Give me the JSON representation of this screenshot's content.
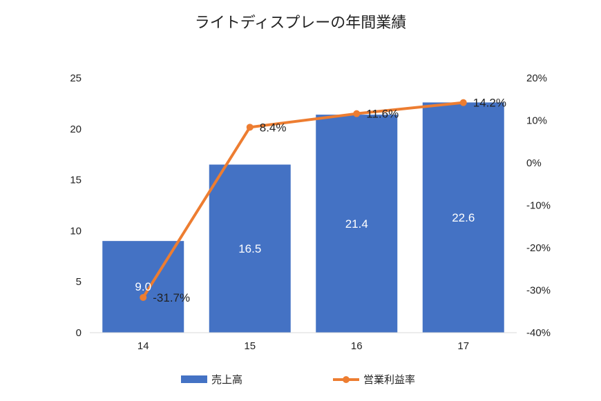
{
  "chart_data": {
    "type": "bar",
    "title": "ライトディスプレーの年間業績",
    "categories": [
      "14",
      "15",
      "16",
      "17"
    ],
    "series": [
      {
        "name": "売上高",
        "type": "bar",
        "axis": "left",
        "color": "#4472C4",
        "values": [
          9.0,
          16.5,
          21.4,
          22.6
        ],
        "labels": [
          "9.0",
          "16.5",
          "21.4",
          "22.6"
        ]
      },
      {
        "name": "営業利益率",
        "type": "line",
        "axis": "right",
        "color": "#ED7D31",
        "values": [
          -31.7,
          8.4,
          11.6,
          14.2
        ],
        "labels": [
          "-31.7%",
          "8.4%",
          "11.6%",
          "14.2%"
        ]
      }
    ],
    "y_left": {
      "min": 0,
      "max": 25,
      "ticks": [
        "0",
        "5",
        "10",
        "15",
        "20",
        "25"
      ]
    },
    "y_right": {
      "min": -40,
      "max": 20,
      "ticks": [
        "-40%",
        "-30%",
        "-20%",
        "-10%",
        "0%",
        "10%",
        "20%"
      ]
    },
    "grid": false,
    "legend_position": "bottom"
  }
}
